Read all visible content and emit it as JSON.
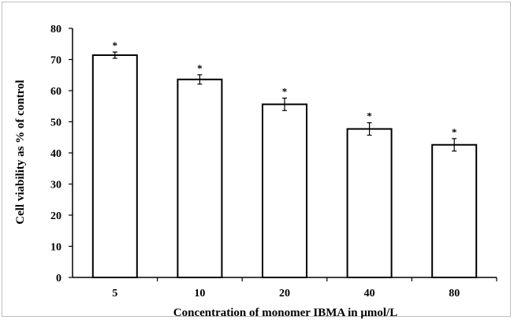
{
  "chart_data": {
    "type": "bar",
    "title": "",
    "xlabel": "Concentration of monomer IBMA in μmol/L",
    "ylabel": "Cell viability as % of  control",
    "categories": [
      "5",
      "10",
      "20",
      "40",
      "80"
    ],
    "values": [
      71.4,
      63.6,
      55.6,
      47.7,
      42.6
    ],
    "errors": [
      1.0,
      1.5,
      2.0,
      2.0,
      2.0
    ],
    "annotations": [
      "*",
      "*",
      "*",
      "*",
      "*"
    ],
    "ylim": [
      0,
      80
    ],
    "yticks": [
      "0",
      "10",
      "20",
      "30",
      "40",
      "50",
      "60",
      "70",
      "80"
    ],
    "grid": false,
    "bar_fill": "#ffffff",
    "bar_stroke": "#000000"
  }
}
